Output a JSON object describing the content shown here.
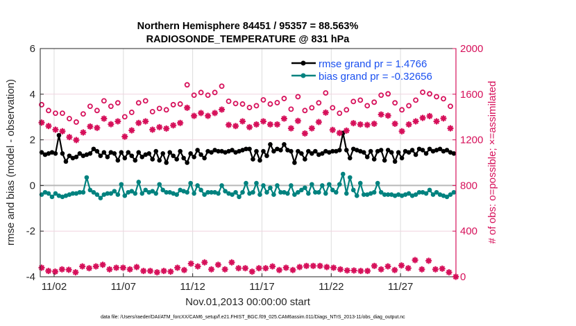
{
  "chart_data": {
    "type": "line",
    "title": [
      "Northern Hemisphere 84451 / 95357 = 88.563%",
      "RADIOSONDE_TEMPERATURE @ 831 hPa"
    ],
    "xlabel": "Nov.01,2013 00:00:00 start",
    "ylabel": "rmse and bias (model - observation)",
    "ylabel_right": "# of obs: o=possible; ×=assimilated",
    "footer": "data file: /Users/raeder/DAI/ATM_forcXX/CAM6_setup/f.e21.FHIST_BGC.f09_025.CAM6assim.011/Diags_NTrS_2013-11/obs_diag_output.nc",
    "xlim_days": [
      0,
      30
    ],
    "xticks": [
      {
        "day": 1,
        "label": "11/02"
      },
      {
        "day": 6,
        "label": "11/07"
      },
      {
        "day": 11,
        "label": "11/12"
      },
      {
        "day": 16,
        "label": "11/17"
      },
      {
        "day": 21,
        "label": "11/22"
      },
      {
        "day": 26,
        "label": "11/27"
      }
    ],
    "ylim": [
      -4,
      6
    ],
    "yticks": [
      6,
      4,
      2,
      0,
      -2,
      -4
    ],
    "ylim_right": [
      0,
      2000
    ],
    "yticks_right": [
      2000,
      1600,
      1200,
      800,
      400,
      0
    ],
    "legend": {
      "position": "top-right",
      "entries": [
        "rmse grand pr = 1.4766",
        "bias grand pr = -0.32656"
      ]
    },
    "colors": {
      "rmse": "#000000",
      "bias": "#00827f",
      "obs": "#d6105a",
      "legend_text": "#1a50f0"
    },
    "series": [
      {
        "name": "rmse",
        "x_start_day": 0.1,
        "x_step_day": 0.25,
        "values": [
          1.45,
          1.35,
          1.4,
          1.45,
          1.4,
          2.2,
          1.4,
          1.05,
          1.3,
          1.2,
          1.25,
          1.4,
          1.3,
          1.35,
          1.4,
          1.6,
          1.5,
          1.3,
          1.45,
          1.25,
          1.45,
          1.4,
          1.1,
          1.45,
          1.2,
          1.45,
          1.3,
          1.1,
          1.45,
          1.25,
          1.35,
          1.4,
          1.15,
          1.5,
          1.1,
          1.4,
          1.0,
          1.45,
          1.3,
          1.15,
          1.5,
          1.2,
          1.0,
          1.4,
          1.25,
          1.55,
          1.35,
          1.2,
          1.5,
          1.45,
          1.55,
          1.5,
          1.5,
          1.45,
          1.5,
          1.55,
          1.45,
          1.5,
          1.55,
          1.6,
          1.6,
          1.15,
          1.5,
          1.1,
          1.5,
          1.3,
          1.8,
          1.5,
          1.6,
          1.55,
          1.8,
          1.55,
          1.5,
          1.0,
          1.5,
          1.4,
          1.15,
          1.5,
          1.4,
          1.5,
          1.35,
          1.4,
          1.5,
          1.45,
          1.5,
          1.5,
          1.55,
          2.3,
          1.55,
          1.2,
          1.6,
          1.55,
          1.5,
          1.45,
          1.25,
          1.5,
          1.15,
          1.5,
          1.55,
          1.1,
          1.55,
          1.45,
          1.05,
          1.45,
          1.2,
          1.5,
          1.45,
          1.55,
          1.35,
          1.6,
          1.55,
          1.4,
          1.6,
          1.5,
          1.55,
          1.6,
          1.5,
          1.55,
          1.45,
          1.4
        ]
      },
      {
        "name": "bias",
        "x_start_day": 0.1,
        "x_step_day": 0.25,
        "values": [
          -0.4,
          -0.3,
          -0.35,
          -0.5,
          -0.35,
          -0.45,
          -0.5,
          -0.45,
          -0.4,
          -0.35,
          -0.35,
          -0.3,
          -0.3,
          0.35,
          -0.2,
          -0.3,
          -0.4,
          -0.55,
          -0.4,
          -0.35,
          -0.35,
          -0.25,
          -0.4,
          0.05,
          -0.45,
          -0.3,
          -0.25,
          -0.35,
          0.15,
          -0.35,
          -0.2,
          -0.3,
          -0.25,
          -0.35,
          0.05,
          -0.2,
          -0.3,
          -0.3,
          -0.35,
          -0.4,
          -0.2,
          -0.25,
          -0.3,
          0.1,
          -0.35,
          0.0,
          -0.2,
          -0.4,
          -0.3,
          -0.3,
          -0.3,
          -0.35,
          0.0,
          -0.25,
          -0.35,
          -0.4,
          -0.3,
          -0.5,
          -0.3,
          0.1,
          -0.35,
          -0.3,
          0.1,
          -0.4,
          0.0,
          -0.3,
          -0.1,
          -0.4,
          0.0,
          -0.3,
          -0.3,
          -0.35,
          0.0,
          -0.4,
          -0.3,
          -0.2,
          -0.1,
          -0.35,
          0.05,
          -0.3,
          -0.3,
          0.0,
          -0.35,
          0.05,
          -0.2,
          -0.3,
          0.05,
          0.5,
          -0.35,
          0.35,
          -0.2,
          -0.45,
          0.1,
          -0.4,
          -0.4,
          -0.35,
          -0.3,
          0.1,
          -0.3,
          -0.4,
          -0.4,
          -0.4,
          -0.45,
          -0.4,
          -0.45,
          -0.4,
          -0.35,
          -0.45,
          -0.4,
          -0.3,
          -0.3,
          -0.35,
          -0.2,
          -0.4,
          -0.3,
          -0.4,
          -0.45,
          -0.5,
          -0.4,
          -0.3
        ]
      },
      {
        "name": "possible (upper)",
        "axis": "right",
        "marker": "o",
        "x_start_day": 0.1,
        "x_step_day": 0.5,
        "values": [
          1508,
          1457,
          1433,
          1433,
          1386,
          1356,
          1427,
          1494,
          1457,
          1542,
          1494,
          1524,
          1402,
          1441,
          1524,
          1542,
          1447,
          1475,
          1463,
          1508,
          1514,
          1682,
          1591,
          1615,
          1591,
          1615,
          1670,
          1538,
          1518,
          1514,
          1483,
          1499,
          1550,
          1514,
          1526,
          1562,
          1469,
          1578,
          1457,
          1481,
          1524,
          1611,
          1481,
          1433,
          1463,
          1536,
          1548,
          1499,
          1530,
          1591,
          1603,
          1524,
          1463,
          1499,
          1548,
          1617,
          1603,
          1578,
          1560,
          1494
        ]
      },
      {
        "name": "assimilated (upper)",
        "axis": "right",
        "marker": "*",
        "x_start_day": 0.1,
        "x_step_day": 0.5,
        "values": [
          1351,
          1321,
          1289,
          1275,
          1224,
          1198,
          1265,
          1317,
          1305,
          1386,
          1337,
          1362,
          1228,
          1283,
          1348,
          1362,
          1289,
          1311,
          1299,
          1327,
          1348,
          1481,
          1410,
          1435,
          1410,
          1435,
          1465,
          1331,
          1321,
          1362,
          1311,
          1335,
          1362,
          1335,
          1335,
          1386,
          1301,
          1366,
          1256,
          1301,
          1356,
          1439,
          1287,
          1260,
          1281,
          1346,
          1335,
          1331,
          1341,
          1422,
          1412,
          1341,
          1275,
          1335,
          1362,
          1392,
          1408,
          1362,
          1388,
          1301
        ]
      },
      {
        "name": "assimilated (lower)",
        "axis": "right",
        "marker": "*",
        "x_start_day": 0.1,
        "x_step_day": 0.49,
        "values": [
          79,
          51,
          45,
          65,
          61,
          39,
          91,
          75,
          91,
          105,
          65,
          79,
          79,
          65,
          85,
          51,
          51,
          39,
          51,
          45,
          79,
          59,
          115,
          91,
          126,
          65,
          105,
          65,
          126,
          75,
          75,
          45,
          75,
          75,
          91,
          59,
          79,
          59,
          85,
          95,
          95,
          95,
          85,
          79,
          65,
          55,
          55,
          51,
          51,
          95,
          65,
          91,
          59,
          99,
          75,
          146,
          65,
          140,
          65,
          71,
          39,
          0
        ]
      }
    ]
  }
}
